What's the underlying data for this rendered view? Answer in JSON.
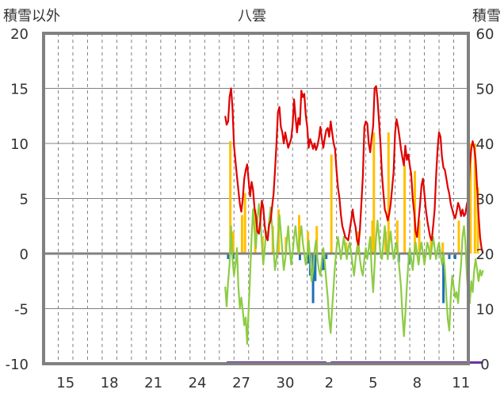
{
  "chart_data": {
    "type": "line",
    "title": "八雲",
    "ylabel_left": "積雪以外",
    "ylabel_right": "積雪",
    "ylim_left": [
      -10,
      20
    ],
    "ylim_right": [
      0,
      60
    ],
    "yticks_left": [
      "20",
      "15",
      "10",
      "5",
      "0",
      "-5",
      "-10"
    ],
    "yticks_right": [
      "60",
      "50",
      "40",
      "30",
      "20",
      "10",
      "0"
    ],
    "x_range_days": [
      0,
      29
    ],
    "xtick_labels": [
      {
        "day": 1.5,
        "label": "15"
      },
      {
        "day": 4.5,
        "label": "18"
      },
      {
        "day": 7.5,
        "label": "21"
      },
      {
        "day": 10.5,
        "label": "24"
      },
      {
        "day": 13.5,
        "label": "27"
      },
      {
        "day": 16.5,
        "label": "30"
      },
      {
        "day": 19.5,
        "label": "2"
      },
      {
        "day": 22.5,
        "label": "5"
      },
      {
        "day": 25.5,
        "label": "8"
      },
      {
        "day": 28.5,
        "label": "11"
      }
    ],
    "grid": true,
    "colors": {
      "red": "#e00000",
      "green": "#8ccc44",
      "yellow": "#ffc000",
      "blue": "#1f6fb8",
      "purple": "#7030a0",
      "zero": "#808080",
      "grid": "#808080",
      "frame": "#808080"
    },
    "series_red": [
      [
        12.4,
        12.5
      ],
      [
        12.5,
        11.7
      ],
      [
        12.6,
        12.0
      ],
      [
        12.7,
        14.2
      ],
      [
        12.8,
        15.0
      ],
      [
        12.9,
        13.2
      ],
      [
        13.0,
        9.8
      ],
      [
        13.2,
        7.0
      ],
      [
        13.4,
        4.5
      ],
      [
        13.5,
        3.8
      ],
      [
        13.6,
        5.0
      ],
      [
        13.7,
        6.8
      ],
      [
        13.8,
        7.6
      ],
      [
        13.9,
        8.1
      ],
      [
        14.0,
        6.6
      ],
      [
        14.1,
        5.2
      ],
      [
        14.2,
        6.5
      ],
      [
        14.3,
        5.8
      ],
      [
        14.4,
        4.1
      ],
      [
        14.5,
        3.4
      ],
      [
        14.6,
        2.0
      ],
      [
        14.7,
        1.8
      ],
      [
        14.8,
        3.0
      ],
      [
        14.9,
        4.8
      ],
      [
        15.0,
        4.2
      ],
      [
        15.1,
        2.5
      ],
      [
        15.2,
        1.5
      ],
      [
        15.3,
        1.2
      ],
      [
        15.4,
        2.6
      ],
      [
        15.5,
        3.0
      ],
      [
        15.6,
        4.2
      ],
      [
        15.7,
        5.4
      ],
      [
        15.8,
        7.5
      ],
      [
        15.9,
        10.0
      ],
      [
        16.0,
        12.8
      ],
      [
        16.1,
        13.3
      ],
      [
        16.2,
        11.5
      ],
      [
        16.3,
        11.0
      ],
      [
        16.4,
        10.0
      ],
      [
        16.5,
        11.0
      ],
      [
        16.6,
        10.3
      ],
      [
        16.7,
        9.6
      ],
      [
        16.8,
        10.0
      ],
      [
        16.9,
        10.4
      ],
      [
        17.0,
        11.6
      ],
      [
        17.1,
        14.0
      ],
      [
        17.2,
        12.4
      ],
      [
        17.3,
        11.0
      ],
      [
        17.4,
        12.3
      ],
      [
        17.5,
        11.7
      ],
      [
        17.6,
        14.8
      ],
      [
        17.7,
        14.2
      ],
      [
        17.8,
        14.5
      ],
      [
        17.9,
        12.6
      ],
      [
        18.0,
        11.5
      ],
      [
        18.1,
        9.6
      ],
      [
        18.2,
        10.4
      ],
      [
        18.3,
        10.0
      ],
      [
        18.4,
        9.5
      ],
      [
        18.5,
        10.0
      ],
      [
        18.6,
        9.4
      ],
      [
        18.7,
        9.8
      ],
      [
        18.8,
        10.5
      ],
      [
        18.9,
        11.5
      ],
      [
        19.0,
        10.4
      ],
      [
        19.1,
        9.6
      ],
      [
        19.2,
        10.5
      ],
      [
        19.3,
        11.2
      ],
      [
        19.4,
        11.4
      ],
      [
        19.5,
        10.6
      ],
      [
        19.6,
        12.0
      ],
      [
        19.7,
        11.0
      ],
      [
        19.8,
        10.0
      ],
      [
        19.9,
        9.5
      ],
      [
        20.0,
        7.5
      ],
      [
        20.1,
        6.0
      ],
      [
        20.2,
        5.0
      ],
      [
        20.3,
        3.5
      ],
      [
        20.4,
        2.5
      ],
      [
        20.5,
        2.0
      ],
      [
        20.6,
        1.5
      ],
      [
        20.8,
        1.2
      ],
      [
        21.0,
        3.0
      ],
      [
        21.1,
        4.0
      ],
      [
        21.2,
        3.0
      ],
      [
        21.3,
        2.4
      ],
      [
        21.4,
        1.2
      ],
      [
        21.5,
        0.8
      ],
      [
        21.6,
        2.2
      ],
      [
        21.8,
        7.0
      ],
      [
        21.9,
        11.5
      ],
      [
        22.0,
        12.0
      ],
      [
        22.1,
        11.8
      ],
      [
        22.2,
        10.0
      ],
      [
        22.3,
        9.2
      ],
      [
        22.4,
        10.5
      ],
      [
        22.5,
        11.6
      ],
      [
        22.6,
        15.0
      ],
      [
        22.7,
        15.2
      ],
      [
        22.8,
        14.0
      ],
      [
        22.9,
        12.0
      ],
      [
        23.0,
        10.0
      ],
      [
        23.1,
        7.2
      ],
      [
        23.2,
        5.5
      ],
      [
        23.3,
        4.0
      ],
      [
        23.4,
        3.6
      ],
      [
        23.5,
        3.0
      ],
      [
        23.6,
        3.6
      ],
      [
        23.7,
        4.5
      ],
      [
        23.8,
        6.0
      ],
      [
        23.9,
        7.4
      ],
      [
        24.0,
        11.0
      ],
      [
        24.1,
        12.2
      ],
      [
        24.2,
        11.5
      ],
      [
        24.3,
        10.6
      ],
      [
        24.4,
        9.5
      ],
      [
        24.5,
        8.7
      ],
      [
        24.6,
        8.0
      ],
      [
        24.7,
        9.8
      ],
      [
        24.8,
        8.5
      ],
      [
        24.9,
        9.0
      ],
      [
        25.0,
        8.0
      ],
      [
        25.1,
        7.2
      ],
      [
        25.2,
        5.0
      ],
      [
        25.3,
        3.8
      ],
      [
        25.4,
        2.0
      ],
      [
        25.5,
        1.5
      ],
      [
        25.6,
        3.0
      ],
      [
        25.7,
        4.4
      ],
      [
        25.8,
        6.2
      ],
      [
        25.9,
        6.8
      ],
      [
        26.0,
        5.4
      ],
      [
        26.1,
        4.0
      ],
      [
        26.2,
        3.0
      ],
      [
        26.3,
        2.2
      ],
      [
        26.4,
        1.5
      ],
      [
        26.5,
        1.2
      ],
      [
        26.6,
        2.5
      ],
      [
        26.7,
        4.0
      ],
      [
        26.8,
        7.0
      ],
      [
        26.9,
        9.5
      ],
      [
        27.0,
        11.0
      ],
      [
        27.1,
        10.6
      ],
      [
        27.2,
        8.8
      ],
      [
        27.3,
        7.8
      ],
      [
        27.4,
        7.6
      ],
      [
        27.5,
        6.8
      ],
      [
        27.6,
        6.0
      ],
      [
        27.7,
        5.4
      ],
      [
        27.8,
        4.5
      ],
      [
        27.9,
        4.0
      ],
      [
        28.0,
        3.5
      ],
      [
        28.1,
        3.2
      ],
      [
        28.2,
        3.8
      ],
      [
        28.3,
        4.6
      ],
      [
        28.4,
        4.2
      ],
      [
        28.5,
        3.4
      ],
      [
        28.6,
        4.0
      ],
      [
        28.7,
        3.4
      ],
      [
        28.8,
        3.6
      ],
      [
        28.9,
        4.5
      ],
      [
        29.0,
        5.0
      ],
      [
        29.1,
        8.0
      ],
      [
        29.2,
        9.5
      ],
      [
        29.3,
        10.2
      ],
      [
        29.4,
        9.6
      ],
      [
        29.5,
        8.5
      ],
      [
        29.6,
        6.0
      ],
      [
        29.7,
        3.5
      ],
      [
        29.8,
        1.5
      ],
      [
        29.9,
        0.5
      ],
      [
        30.0,
        0.0
      ]
    ],
    "series_green": [
      [
        12.4,
        -3.0
      ],
      [
        12.5,
        -4.8
      ],
      [
        12.6,
        -2.5
      ],
      [
        12.7,
        -1.0
      ],
      [
        12.8,
        2.5
      ],
      [
        12.9,
        -0.5
      ],
      [
        13.0,
        -2.0
      ],
      [
        13.1,
        -1.0
      ],
      [
        13.2,
        0.5
      ],
      [
        13.3,
        -3.0
      ],
      [
        13.4,
        -5.0
      ],
      [
        13.5,
        -4.0
      ],
      [
        13.6,
        -5.2
      ],
      [
        13.7,
        -6.5
      ],
      [
        13.8,
        -5.8
      ],
      [
        13.9,
        -8.2
      ],
      [
        14.0,
        -5.0
      ],
      [
        14.1,
        -2.0
      ],
      [
        14.2,
        1.5
      ],
      [
        14.3,
        4.0
      ],
      [
        14.4,
        2.0
      ],
      [
        14.5,
        0.5
      ],
      [
        14.6,
        3.0
      ],
      [
        14.7,
        4.5
      ],
      [
        14.8,
        3.0
      ],
      [
        14.9,
        1.0
      ],
      [
        15.0,
        -1.0
      ],
      [
        15.1,
        0.5
      ],
      [
        15.2,
        2.0
      ],
      [
        15.3,
        1.5
      ],
      [
        15.4,
        3.0
      ],
      [
        15.5,
        4.2
      ],
      [
        15.6,
        2.5
      ],
      [
        15.7,
        0.5
      ],
      [
        15.8,
        -1.5
      ],
      [
        15.9,
        -0.5
      ],
      [
        16.0,
        1.5
      ],
      [
        16.1,
        3.5
      ],
      [
        16.2,
        2.0
      ],
      [
        16.3,
        0.2
      ],
      [
        16.4,
        -1.5
      ],
      [
        16.5,
        -0.5
      ],
      [
        16.6,
        1.0
      ],
      [
        16.7,
        2.5
      ],
      [
        16.8,
        0.5
      ],
      [
        16.9,
        -1.0
      ],
      [
        17.0,
        0.0
      ],
      [
        17.1,
        1.5
      ],
      [
        17.2,
        2.5
      ],
      [
        17.3,
        1.0
      ],
      [
        17.4,
        0.0
      ],
      [
        17.5,
        1.5
      ],
      [
        17.6,
        2.5
      ],
      [
        17.7,
        1.0
      ],
      [
        17.8,
        0.0
      ],
      [
        17.9,
        -1.0
      ],
      [
        18.0,
        0.0
      ],
      [
        18.1,
        1.2
      ],
      [
        18.2,
        -0.5
      ],
      [
        18.3,
        -2.5
      ],
      [
        18.4,
        -1.5
      ],
      [
        18.5,
        0.2
      ],
      [
        18.6,
        1.2
      ],
      [
        18.7,
        -0.5
      ],
      [
        18.8,
        -1.5
      ],
      [
        18.9,
        -2.0
      ],
      [
        19.0,
        -0.5
      ],
      [
        19.1,
        0.5
      ],
      [
        19.2,
        -0.8
      ],
      [
        19.3,
        -2.5
      ],
      [
        19.4,
        -4.0
      ],
      [
        19.5,
        -6.0
      ],
      [
        19.6,
        -7.2
      ],
      [
        19.7,
        -5.0
      ],
      [
        19.8,
        -3.0
      ],
      [
        19.9,
        -1.0
      ],
      [
        20.0,
        0.5
      ],
      [
        20.1,
        1.5
      ],
      [
        20.2,
        0.5
      ],
      [
        20.3,
        -0.5
      ],
      [
        20.4,
        0.5
      ],
      [
        20.5,
        1.5
      ],
      [
        20.6,
        0.5
      ],
      [
        20.7,
        -0.5
      ],
      [
        20.8,
        0.5
      ],
      [
        20.9,
        1.0
      ],
      [
        21.0,
        0.0
      ],
      [
        21.1,
        -1.0
      ],
      [
        21.2,
        -2.0
      ],
      [
        21.3,
        -0.5
      ],
      [
        21.4,
        0.5
      ],
      [
        21.5,
        1.0
      ],
      [
        21.6,
        -0.5
      ],
      [
        21.7,
        -1.5
      ],
      [
        21.8,
        -2.0
      ],
      [
        21.9,
        -0.5
      ],
      [
        22.0,
        0.5
      ],
      [
        22.1,
        -0.5
      ],
      [
        22.2,
        0.5
      ],
      [
        22.3,
        1.5
      ],
      [
        22.4,
        -1.5
      ],
      [
        22.5,
        -3.5
      ],
      [
        22.6,
        -1.0
      ],
      [
        22.7,
        1.5
      ],
      [
        22.8,
        3.0
      ],
      [
        22.9,
        1.5
      ],
      [
        23.0,
        0.0
      ],
      [
        23.1,
        -0.5
      ],
      [
        23.2,
        1.0
      ],
      [
        23.3,
        2.5
      ],
      [
        23.4,
        1.0
      ],
      [
        23.5,
        -0.5
      ],
      [
        23.6,
        1.0
      ],
      [
        23.7,
        2.0
      ],
      [
        23.8,
        0.5
      ],
      [
        23.9,
        -0.5
      ],
      [
        24.0,
        0.5
      ],
      [
        24.1,
        1.0
      ],
      [
        24.2,
        0.0
      ],
      [
        24.3,
        -1.5
      ],
      [
        24.4,
        -3.0
      ],
      [
        24.5,
        -5.5
      ],
      [
        24.6,
        -7.5
      ],
      [
        24.7,
        -5.5
      ],
      [
        24.8,
        -3.0
      ],
      [
        24.9,
        -1.0
      ],
      [
        25.0,
        0.5
      ],
      [
        25.1,
        -0.5
      ],
      [
        25.2,
        -1.5
      ],
      [
        25.3,
        0.0
      ],
      [
        25.4,
        1.0
      ],
      [
        25.5,
        0.0
      ],
      [
        25.6,
        -1.0
      ],
      [
        25.7,
        0.2
      ],
      [
        25.8,
        1.0
      ],
      [
        25.9,
        0.0
      ],
      [
        26.0,
        -1.0
      ],
      [
        26.1,
        0.0
      ],
      [
        26.2,
        1.0
      ],
      [
        26.3,
        0.5
      ],
      [
        26.4,
        -0.5
      ],
      [
        26.5,
        0.5
      ],
      [
        26.6,
        1.5
      ],
      [
        26.7,
        0.5
      ],
      [
        26.8,
        -0.5
      ],
      [
        26.9,
        0.5
      ],
      [
        27.0,
        1.0
      ],
      [
        27.1,
        0.0
      ],
      [
        27.2,
        -1.0
      ],
      [
        27.3,
        0.0
      ],
      [
        27.4,
        -1.5
      ],
      [
        27.5,
        -4.0
      ],
      [
        27.6,
        -6.0
      ],
      [
        27.7,
        -7.0
      ],
      [
        27.8,
        -4.0
      ],
      [
        27.9,
        -2.0
      ],
      [
        28.0,
        -3.0
      ],
      [
        28.1,
        -4.0
      ],
      [
        28.2,
        -3.5
      ],
      [
        28.3,
        -4.5
      ],
      [
        28.4,
        -2.5
      ],
      [
        28.5,
        -1.0
      ],
      [
        28.6,
        1.5
      ],
      [
        28.7,
        2.5
      ],
      [
        28.8,
        1.0
      ],
      [
        28.9,
        -2.0
      ],
      [
        29.0,
        -4.0
      ],
      [
        29.1,
        -4.5
      ],
      [
        29.2,
        -2.5
      ],
      [
        29.3,
        -3.5
      ],
      [
        29.4,
        -1.5
      ],
      [
        29.5,
        -0.5
      ],
      [
        29.6,
        -1.5
      ],
      [
        29.7,
        -2.5
      ],
      [
        29.8,
        -1.5
      ],
      [
        29.9,
        -2.0
      ],
      [
        30.0,
        -1.5
      ]
    ],
    "bars_yellow": [
      [
        12.75,
        10.2
      ],
      [
        12.95,
        2.0
      ],
      [
        13.55,
        3.5
      ],
      [
        13.75,
        5.5
      ],
      [
        14.45,
        4.0
      ],
      [
        14.95,
        1.5
      ],
      [
        15.65,
        2.5
      ],
      [
        16.05,
        4.0
      ],
      [
        16.55,
        1.5
      ],
      [
        17.45,
        3.5
      ],
      [
        18.05,
        2.0
      ],
      [
        18.65,
        2.5
      ],
      [
        19.65,
        9.0
      ],
      [
        20.65,
        1.0
      ],
      [
        21.45,
        2.0
      ],
      [
        22.45,
        3.0
      ],
      [
        22.55,
        11.0
      ],
      [
        23.35,
        2.0
      ],
      [
        23.55,
        11.0
      ],
      [
        24.15,
        3.0
      ],
      [
        24.65,
        8.0
      ],
      [
        25.35,
        7.5
      ],
      [
        25.65,
        3.0
      ],
      [
        26.45,
        1.5
      ],
      [
        27.25,
        1.0
      ],
      [
        28.35,
        3.0
      ],
      [
        29.15,
        10.0
      ],
      [
        29.45,
        10.0
      ],
      [
        29.65,
        6.0
      ]
    ],
    "bars_blue": [
      [
        12.6,
        -0.5
      ],
      [
        12.95,
        -0.5
      ],
      [
        17.5,
        -0.6
      ],
      [
        18.1,
        -0.9
      ],
      [
        18.2,
        -2.0
      ],
      [
        18.4,
        -4.5
      ],
      [
        18.55,
        -2.5
      ],
      [
        19.1,
        -1.5
      ],
      [
        19.3,
        -0.5
      ],
      [
        24.25,
        -0.8
      ],
      [
        24.95,
        -1.0
      ],
      [
        27.3,
        -4.5
      ],
      [
        27.7,
        -0.5
      ],
      [
        28.1,
        -0.5
      ]
    ],
    "purple_segments": [
      [
        12.5,
        19.3
      ],
      [
        19.6,
        30.0
      ]
    ]
  }
}
